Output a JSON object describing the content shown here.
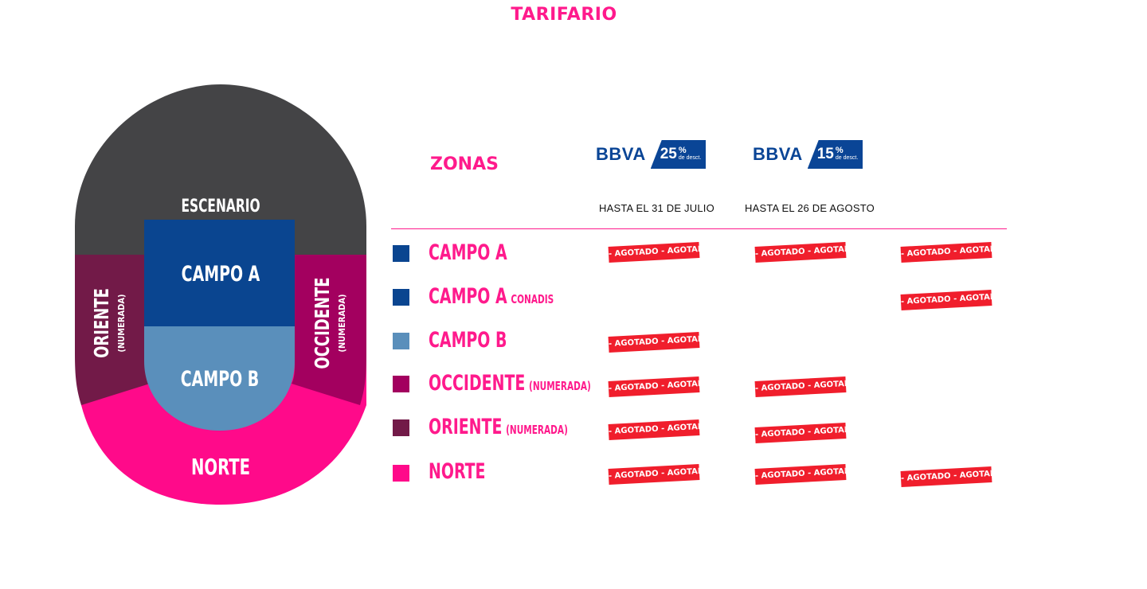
{
  "title": "TARIFARIO",
  "map": {
    "escenario": "ESCENARIO",
    "campo_a": "CAMPO A",
    "campo_b": "CAMPO B",
    "oriente": "ORIENTE",
    "oriente_sub": "(NUMERADA)",
    "occidente": "OCCIDENTE",
    "occidente_sub": "(NUMERADA)",
    "norte": "NORTE"
  },
  "table": {
    "zonas_label": "ZONAS",
    "columns": [
      {
        "logo": "BBVA",
        "discount": "25",
        "percent": "%",
        "discount_note": "de desct.",
        "date": "HASTA EL 31 DE JULIO"
      },
      {
        "logo": "BBVA",
        "discount": "15",
        "percent": "%",
        "discount_note": "de desct.",
        "date": "HASTA EL 26 DE AGOSTO"
      }
    ],
    "sold_out_label": "- AGOTADO - AGOTADO - AGOTADO -",
    "rows": [
      {
        "name": "CAMPO A",
        "sub": "",
        "color": "#0a4590"
      },
      {
        "name": "CAMPO A",
        "sub": "CONADIS",
        "color": "#0a4590"
      },
      {
        "name": "CAMPO B",
        "sub": "",
        "color": "#5a8fbb"
      },
      {
        "name": "OCCIDENTE",
        "sub": "(NUMERADA)",
        "color": "#a3005f"
      },
      {
        "name": "ORIENTE",
        "sub": "(NUMERADA)",
        "color": "#721a48"
      },
      {
        "name": "NORTE",
        "sub": "",
        "color": "#ff0a8a"
      }
    ]
  },
  "colors": {
    "accent": "#ff1a8c",
    "escenario": "#444446",
    "campo_a": "#0a4590",
    "campo_b": "#5a8fbb",
    "oriente": "#721a48",
    "occidente": "#a3005f",
    "norte": "#ff0a8a",
    "bbva": "#0a4596",
    "sold_out": "#f01e2c"
  }
}
